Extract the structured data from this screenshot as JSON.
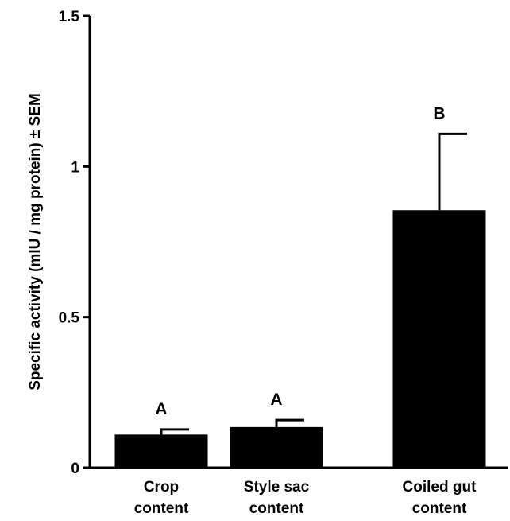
{
  "chart_data": {
    "type": "bar",
    "title": "",
    "xlabel": "",
    "ylabel": "Specific activity (mIU / mg protein) ± SEM",
    "ylim": [
      0,
      1.5
    ],
    "yticks": [
      {
        "value": 0,
        "label": "0"
      },
      {
        "value": 0.5,
        "label": "0.5"
      },
      {
        "value": 1,
        "label": "1"
      },
      {
        "value": 1.5,
        "label": "1.5"
      }
    ],
    "categories": [
      [
        "Crop",
        "content"
      ],
      [
        "Style sac",
        "content"
      ],
      [
        "Coiled gut",
        "content"
      ]
    ],
    "values": [
      0.11,
      0.135,
      0.855
    ],
    "errors": [
      0.017,
      0.023,
      0.253
    ],
    "significance_labels": [
      "A",
      "A",
      "B"
    ],
    "bar_color": "#000000",
    "grid": false
  }
}
